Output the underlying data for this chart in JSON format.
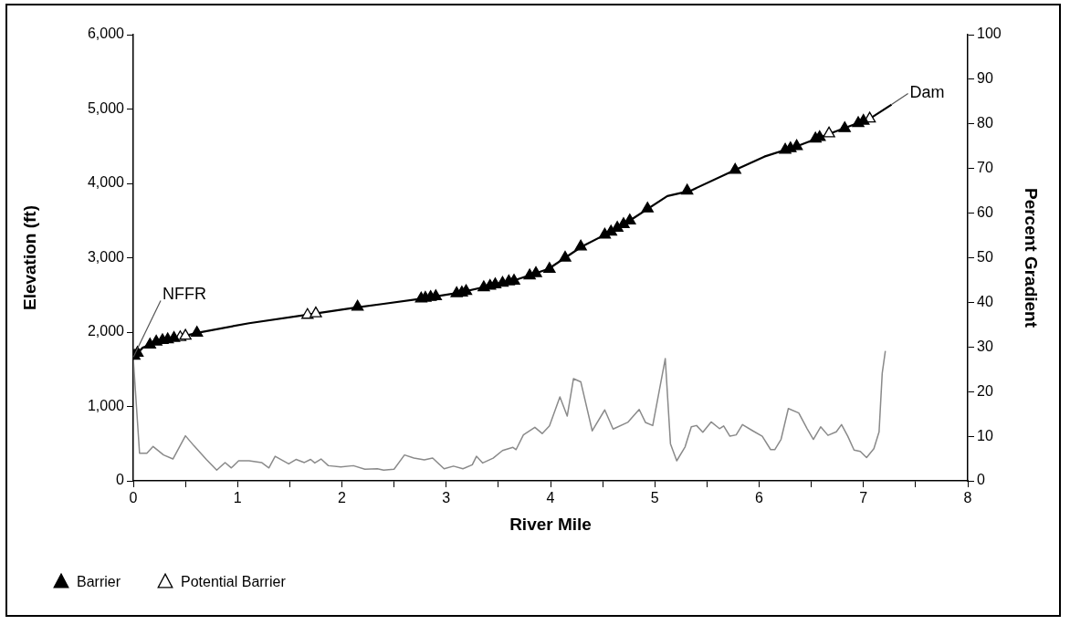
{
  "chart_data": {
    "type": "line",
    "xlabel": "River Mile",
    "ylabel": "Elevation (ft)",
    "y2label": "Percent Gradient",
    "xlim": [
      0,
      8
    ],
    "xticks": [
      0,
      {
        "value": 0.5,
        "label": null
      },
      1,
      {
        "value": 1.5,
        "label": null
      },
      2,
      {
        "value": 2.5,
        "label": null
      },
      3,
      {
        "value": 3.5,
        "label": null
      },
      4,
      {
        "value": 4.5,
        "label": null
      },
      5,
      {
        "value": 5.5,
        "label": null
      },
      6,
      {
        "value": 6.5,
        "label": null
      },
      7,
      {
        "value": 7.5,
        "label": null
      },
      8
    ],
    "ylim": [
      0,
      6000
    ],
    "yticks": [
      0,
      {
        "value": 1000,
        "label": "1,000"
      },
      {
        "value": 2000,
        "label": "2,000"
      },
      {
        "value": 3000,
        "label": "3,000"
      },
      {
        "value": 4000,
        "label": "4,000"
      },
      {
        "value": 5000,
        "label": "5,000"
      },
      {
        "value": 6000,
        "label": "6,000"
      }
    ],
    "y2lim": [
      0,
      100
    ],
    "y2ticks": [
      0,
      10,
      20,
      30,
      40,
      50,
      60,
      70,
      80,
      90,
      100
    ],
    "grid": false,
    "legend": "bottom",
    "series": [
      {
        "color": "#000000",
        "marker": "none",
        "x": [
          0,
          0.09,
          0.23,
          0.47,
          0.61,
          1.11,
          1.7,
          2.13,
          2.4,
          2.76,
          3.12,
          3.66,
          3.98,
          4.3,
          4.55,
          4.76,
          5.12,
          5.34,
          5.77,
          6.05,
          6.38,
          6.7,
          7.06,
          7.27
        ],
        "values": [
          1660,
          1790,
          1870,
          1940,
          1990,
          2120,
          2240,
          2330,
          2380,
          2450,
          2530,
          2700,
          2850,
          3150,
          3330,
          3500,
          3830,
          3900,
          4180,
          4360,
          4510,
          4680,
          4870,
          5060
        ]
      },
      {
        "type": "line",
        "axis": "y2",
        "color": "#8a8a8a",
        "marker": "none",
        "x": [
          0,
          0.06,
          0.13,
          0.19,
          0.29,
          0.38,
          0.5,
          0.58,
          0.7,
          0.8,
          0.88,
          0.94,
          1.01,
          1.11,
          1.23,
          1.3,
          1.36,
          1.49,
          1.56,
          1.64,
          1.7,
          1.74,
          1.8,
          1.87,
          1.99,
          2.11,
          2.22,
          2.34,
          2.4,
          2.5,
          2.6,
          2.69,
          2.79,
          2.87,
          2.98,
          3.07,
          3.16,
          3.25,
          3.29,
          3.35,
          3.45,
          3.54,
          3.64,
          3.67,
          3.74,
          3.85,
          3.92,
          3.99,
          4.09,
          4.16,
          4.22,
          4.29,
          4.4,
          4.52,
          4.6,
          4.74,
          4.85,
          4.91,
          4.98,
          5.1,
          5.15,
          5.21,
          5.29,
          5.35,
          5.4,
          5.46,
          5.54,
          5.62,
          5.66,
          5.72,
          5.78,
          5.84,
          5.94,
          6.03,
          6.11,
          6.15,
          6.21,
          6.28,
          6.38,
          6.46,
          6.52,
          6.59,
          6.66,
          6.74,
          6.79,
          6.85,
          6.91,
          6.97,
          7.03,
          7.1,
          7.15,
          7.18,
          7.21
        ],
        "values": [
          27.4,
          6.2,
          6.2,
          7.7,
          5.8,
          4.9,
          10.1,
          7.9,
          4.8,
          2.4,
          4.1,
          2.9,
          4.5,
          4.5,
          4.1,
          2.9,
          5.5,
          3.8,
          4.8,
          4.1,
          4.8,
          4,
          4.9,
          3.4,
          3.1,
          3.4,
          2.6,
          2.7,
          2.4,
          2.6,
          5.8,
          5.1,
          4.7,
          5.1,
          2.7,
          3.3,
          2.7,
          3.6,
          5.5,
          4,
          5.1,
          6.8,
          7.5,
          7,
          10.3,
          12,
          10.6,
          12.3,
          18.8,
          14.5,
          22.9,
          22.2,
          11.2,
          15.9,
          11.6,
          13.1,
          16,
          13.1,
          12.4,
          27.4,
          8.3,
          4.5,
          7.6,
          12.1,
          12.4,
          10.9,
          13.2,
          11.7,
          12.3,
          10,
          10.3,
          12.6,
          11.2,
          10,
          7,
          7,
          9.3,
          16.2,
          15.2,
          11.7,
          9.3,
          12.1,
          10.2,
          11,
          12.6,
          10,
          6.9,
          6.6,
          5.2,
          7.2,
          11,
          24.1,
          29.1
        ]
      },
      {
        "type": "scatter",
        "name": "Barrier",
        "color": "#000000",
        "marker": "triangle",
        "x": [
          0.01,
          0.04,
          0.16,
          0.22,
          0.28,
          0.33,
          0.39,
          0.61,
          2.15,
          2.76,
          2.8,
          2.85,
          2.9,
          3.1,
          3.15,
          3.19,
          3.36,
          3.42,
          3.47,
          3.54,
          3.6,
          3.65,
          3.8,
          3.86,
          3.99,
          4.14,
          4.29,
          4.52,
          4.58,
          4.64,
          4.7,
          4.76,
          4.93,
          5.31,
          5.77,
          6.25,
          6.3,
          6.36,
          6.54,
          6.58,
          6.82,
          6.95,
          7
        ],
        "values": [
          1680,
          1720,
          1830,
          1870,
          1890,
          1900,
          1920,
          1990,
          2340,
          2450,
          2460,
          2470,
          2480,
          2520,
          2530,
          2550,
          2600,
          2620,
          2640,
          2660,
          2680,
          2690,
          2760,
          2790,
          2850,
          3000,
          3150,
          3310,
          3350,
          3400,
          3450,
          3500,
          3660,
          3900,
          4180,
          4450,
          4470,
          4500,
          4600,
          4620,
          4740,
          4810,
          4840
        ]
      },
      {
        "type": "scatter",
        "name": "Potential Barrier",
        "color": "#ffffff",
        "marker": "triangle",
        "x": [
          0.45,
          0.5,
          1.67,
          1.75,
          6.67,
          7.06
        ],
        "values": [
          1930,
          1950,
          2230,
          2250,
          4670,
          4870
        ]
      }
    ],
    "annotations": [
      {
        "text": "NFFR",
        "x": 0,
        "y": 1663
      },
      {
        "text": "Dam",
        "x": 7.27,
        "y": 5062
      }
    ]
  }
}
